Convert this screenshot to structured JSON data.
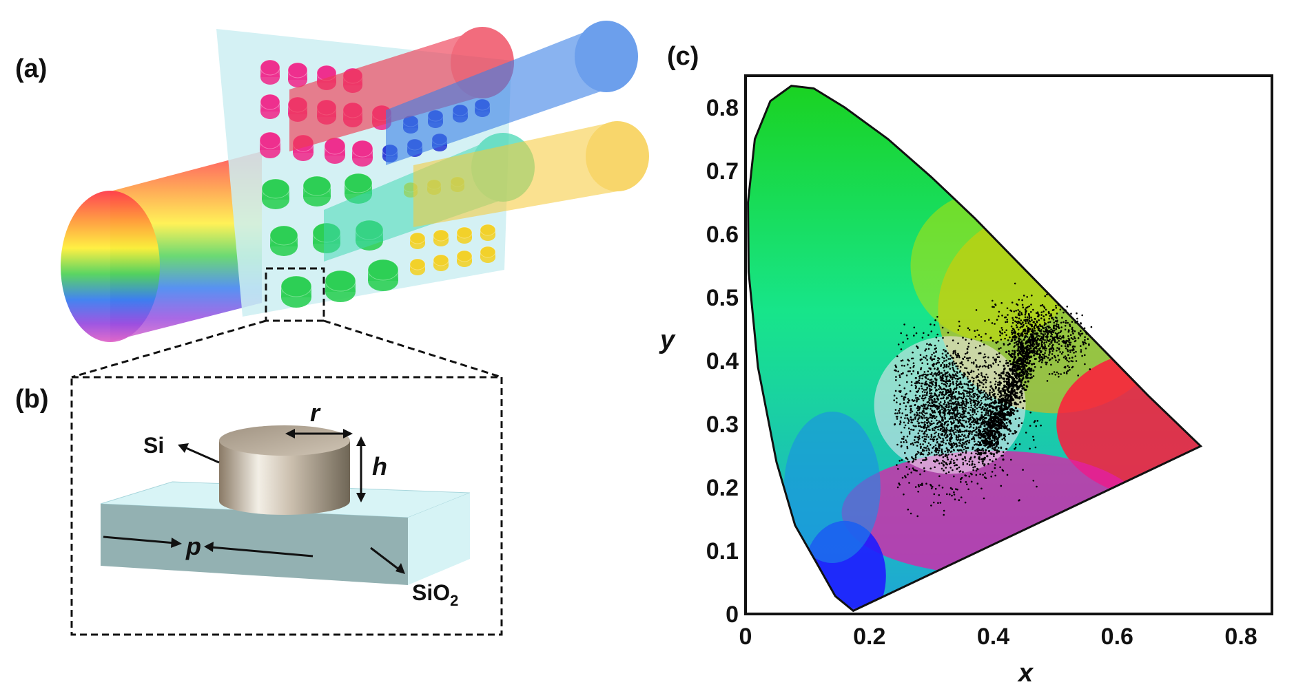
{
  "panels": {
    "a": {
      "label": "(a)"
    },
    "b": {
      "label": "(b)",
      "pillar_material": "Si",
      "substrate_material": "SiO",
      "substrate_subscript": "2",
      "radius_symbol": "r",
      "height_symbol": "h",
      "period_symbol": "p"
    },
    "c": {
      "label": "(c)"
    }
  },
  "colors": {
    "beam_red": "#ee3b52",
    "beam_blue": "#3b7fe6",
    "beam_cyan": "#3fd7b0",
    "beam_yellow": "#f6c93a",
    "pillar_magenta": "#ee2f8e",
    "pillar_green": "#2dcf55",
    "pillar_blue": "#2f3fd6",
    "pillar_yellow": "#f2d12a",
    "substrate": "#cdeff2",
    "points": "#000000"
  },
  "chart_data": {
    "type": "scatter",
    "title": "",
    "xlabel": "x",
    "ylabel": "y",
    "xlim": [
      0,
      0.85
    ],
    "ylim": [
      0,
      0.85
    ],
    "xticks": [
      "0",
      "0.2",
      "0.4",
      "0.6",
      "0.8"
    ],
    "yticks": [
      "0",
      "0.1",
      "0.2",
      "0.3",
      "0.4",
      "0.5",
      "0.6",
      "0.7",
      "0.8"
    ],
    "grid": false,
    "locus": [
      [
        0.174,
        0.005
      ],
      [
        0.145,
        0.028
      ],
      [
        0.115,
        0.08
      ],
      [
        0.08,
        0.14
      ],
      [
        0.05,
        0.24
      ],
      [
        0.02,
        0.39
      ],
      [
        0.005,
        0.54
      ],
      [
        0.004,
        0.65
      ],
      [
        0.015,
        0.75
      ],
      [
        0.04,
        0.81
      ],
      [
        0.074,
        0.834
      ],
      [
        0.11,
        0.83
      ],
      [
        0.16,
        0.8
      ],
      [
        0.23,
        0.75
      ],
      [
        0.3,
        0.69
      ],
      [
        0.37,
        0.625
      ],
      [
        0.44,
        0.555
      ],
      [
        0.51,
        0.485
      ],
      [
        0.58,
        0.415
      ],
      [
        0.65,
        0.345
      ],
      [
        0.735,
        0.265
      ],
      [
        0.174,
        0.005
      ]
    ],
    "series": [
      {
        "type": "scatter-cloud",
        "center": [
          0.33,
          0.32
        ],
        "spread": [
          0.09,
          0.1
        ],
        "count": 2200
      },
      {
        "type": "dense-band",
        "from": [
          0.46,
          0.43
        ],
        "to": [
          0.385,
          0.26
        ],
        "count": 900
      },
      {
        "type": "fan",
        "center": [
          0.48,
          0.44
        ],
        "spread": [
          0.06,
          0.03
        ],
        "count": 700
      }
    ]
  }
}
